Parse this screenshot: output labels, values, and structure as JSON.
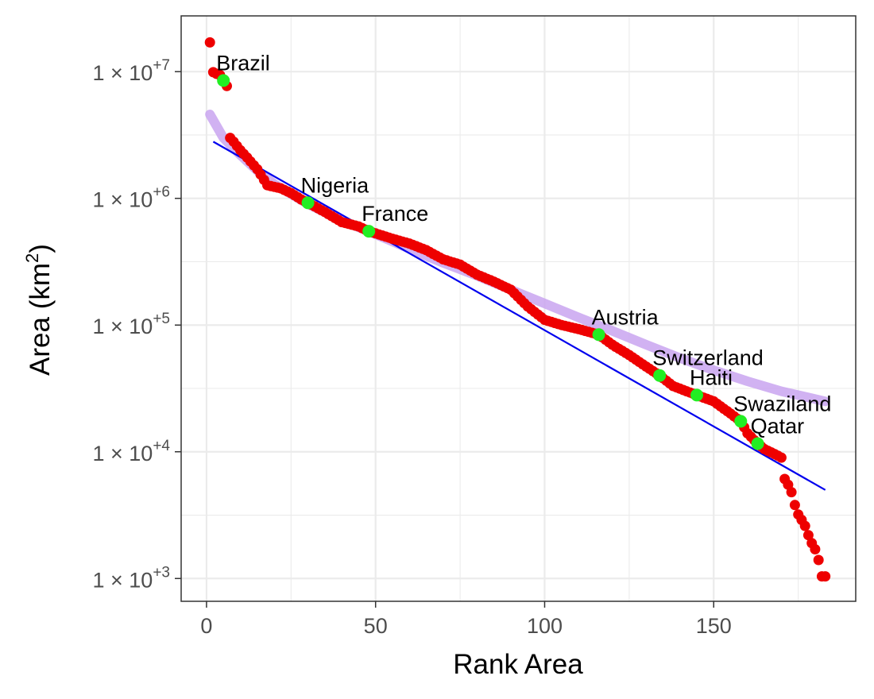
{
  "chart_data": {
    "type": "scatter",
    "xlabel": "Rank Area",
    "ylabel_text": "Area (km",
    "ylabel_sup": "2",
    "ylabel_close": ")",
    "x_ticks": [
      0,
      50,
      100,
      150
    ],
    "x_tick_labels": [
      "0",
      "50",
      "100",
      "150"
    ],
    "y_ticks": [
      1000,
      10000,
      100000,
      1000000,
      10000000
    ],
    "y_tick_labels": [
      {
        "base": "1 × 10",
        "exp": "+3"
      },
      {
        "base": "1 × 10",
        "exp": "+4"
      },
      {
        "base": "1 × 10",
        "exp": "+5"
      },
      {
        "base": "1 × 10",
        "exp": "+6"
      },
      {
        "base": "1 × 10",
        "exp": "+7"
      }
    ],
    "xlim": [
      -7.5,
      192
    ],
    "ylim_log10": [
      2.82,
      7.44
    ],
    "y_scale": "log10",
    "grid": true,
    "colors": {
      "points": "#ee0000",
      "highlight": "#22ee22",
      "fit_line": "#0000ee",
      "smooth": "#c9a5f0",
      "grid": "#ebebeb",
      "panel_border": "#333333"
    },
    "points_anchor_rank": [
      1,
      2,
      3,
      4,
      5,
      6,
      7,
      8,
      10,
      12,
      15,
      18,
      19,
      22,
      25,
      28,
      30,
      35,
      40,
      45,
      48,
      55,
      60,
      65,
      70,
      75,
      80,
      85,
      90,
      95,
      100,
      105,
      110,
      116,
      120,
      125,
      130,
      134,
      138,
      142,
      145,
      150,
      155,
      158,
      160,
      163,
      165,
      168,
      170,
      171,
      172,
      173,
      174,
      175,
      176,
      177,
      178,
      179,
      180,
      181,
      182,
      183
    ],
    "points_anchor_area": [
      17000000,
      9900000,
      9600000,
      9400000,
      8500000,
      7700000,
      3000000,
      2800000,
      2400000,
      2100000,
      1700000,
      1270000,
      1250000,
      1200000,
      1100000,
      980000,
      923000,
      780000,
      650000,
      600000,
      550000,
      480000,
      440000,
      390000,
      330000,
      300000,
      250000,
      220000,
      190000,
      140000,
      110000,
      100000,
      93000,
      84000,
      70000,
      58000,
      47000,
      40000,
      33000,
      30000,
      28000,
      25000,
      20000,
      17400,
      14000,
      11600,
      10500,
      9600,
      9000,
      6100,
      5500,
      4800,
      3800,
      3200,
      2900,
      2600,
      2200,
      1900,
      1700,
      1400,
      1040,
      1040
    ],
    "highlighted": [
      {
        "name": "Brazil",
        "rank": 5,
        "area": 8500000
      },
      {
        "name": "Nigeria",
        "rank": 30,
        "area": 923000
      },
      {
        "name": "France",
        "rank": 48,
        "area": 550000
      },
      {
        "name": "Austria",
        "rank": 116,
        "area": 84000
      },
      {
        "name": "Switzerland",
        "rank": 134,
        "area": 40000
      },
      {
        "name": "Haiti",
        "rank": 145,
        "area": 28000
      },
      {
        "name": "Swaziland",
        "rank": 158,
        "area": 17400
      },
      {
        "name": "Qatar",
        "rank": 163,
        "area": 11600
      }
    ],
    "fit_line": {
      "x": [
        2,
        183
      ],
      "y": [
        2800000,
        5000
      ]
    },
    "smooth_curve": {
      "x": [
        1,
        5,
        10,
        15,
        20,
        30,
        40,
        50,
        60,
        70,
        80,
        90,
        100,
        110,
        120,
        130,
        140,
        150,
        160,
        170,
        183
      ],
      "y": [
        4600000,
        3000000,
        2200000,
        1650000,
        1300000,
        900000,
        670000,
        520000,
        400000,
        310000,
        245000,
        190000,
        148000,
        115000,
        90000,
        70000,
        55000,
        44000,
        36000,
        30000,
        25000
      ]
    }
  }
}
